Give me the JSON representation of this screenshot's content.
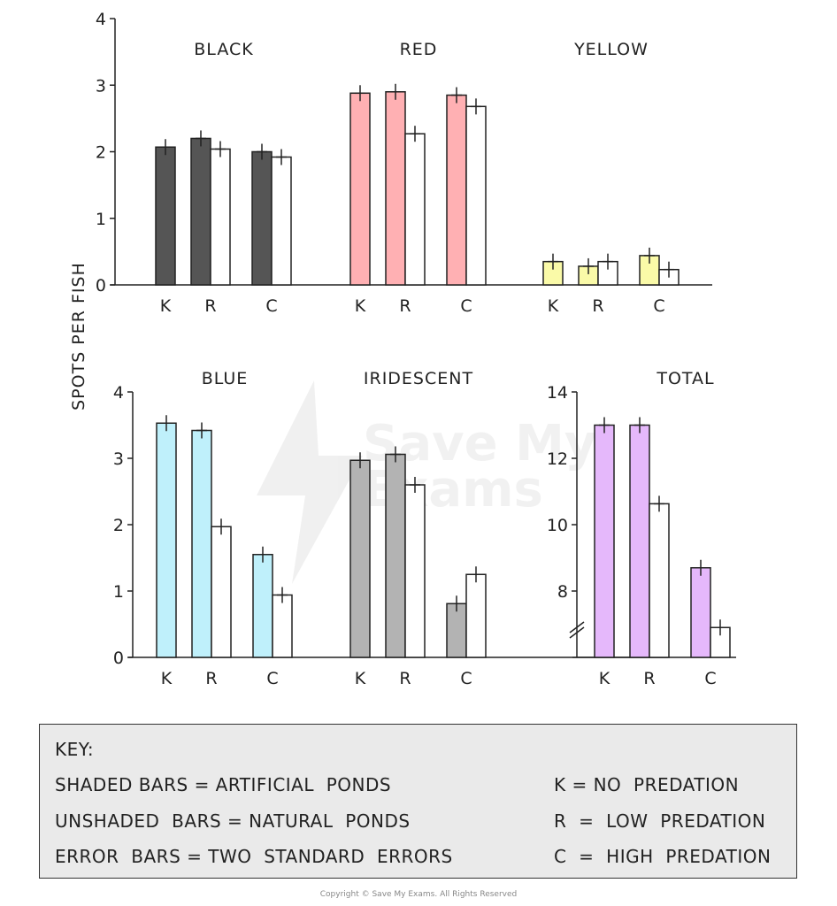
{
  "chart_data": [
    {
      "type": "bar",
      "title": "BLACK",
      "ylabel": "SPOTS PER FISH",
      "ylim": [
        0,
        4
      ],
      "yticks": [
        0,
        1,
        2,
        3,
        4
      ],
      "categories": [
        "K",
        "R",
        "C"
      ],
      "series": [
        {
          "name": "SHADED BARS = ARTIFICIAL PONDS",
          "values": [
            2.07,
            2.2,
            2.0
          ]
        },
        {
          "name": "UNSHADED BARS = NATURAL PONDS",
          "values": [
            null,
            2.04,
            1.92
          ]
        }
      ],
      "color": "#555555"
    },
    {
      "type": "bar",
      "title": "RED",
      "ylim": [
        0,
        4
      ],
      "categories": [
        "K",
        "R",
        "C"
      ],
      "series": [
        {
          "name": "SHADED BARS = ARTIFICIAL PONDS",
          "values": [
            2.88,
            2.9,
            2.85
          ]
        },
        {
          "name": "UNSHADED BARS = NATURAL PONDS",
          "values": [
            null,
            2.27,
            2.68
          ]
        }
      ],
      "color": "#ffb0b3"
    },
    {
      "type": "bar",
      "title": "YELLOW",
      "ylim": [
        0,
        4
      ],
      "categories": [
        "K",
        "R",
        "C"
      ],
      "series": [
        {
          "name": "SHADED BARS = ARTIFICIAL PONDS",
          "values": [
            0.35,
            0.28,
            0.44
          ]
        },
        {
          "name": "UNSHADED BARS = NATURAL PONDS",
          "values": [
            null,
            0.35,
            0.23
          ]
        }
      ],
      "color": "#fafaa8"
    },
    {
      "type": "bar",
      "title": "BLUE",
      "ylim": [
        0,
        4
      ],
      "yticks": [
        0,
        1,
        2,
        3,
        4
      ],
      "categories": [
        "K",
        "R",
        "C"
      ],
      "series": [
        {
          "name": "SHADED BARS = ARTIFICIAL PONDS",
          "values": [
            3.53,
            3.42,
            1.55
          ]
        },
        {
          "name": "UNSHADED BARS = NATURAL PONDS",
          "values": [
            null,
            1.97,
            0.94
          ]
        }
      ],
      "color": "#bff0fb"
    },
    {
      "type": "bar",
      "title": "IRIDESCENT",
      "ylim": [
        0,
        4
      ],
      "categories": [
        "K",
        "R",
        "C"
      ],
      "series": [
        {
          "name": "SHADED BARS = ARTIFICIAL PONDS",
          "values": [
            2.97,
            3.06,
            0.81
          ]
        },
        {
          "name": "UNSHADED BARS = NATURAL PONDS",
          "values": [
            null,
            2.6,
            1.25
          ]
        }
      ],
      "color": "#b3b3b3"
    },
    {
      "type": "bar",
      "title": "TOTAL",
      "ylim": [
        6,
        14
      ],
      "yticks": [
        8,
        10,
        12,
        14
      ],
      "axis_break": true,
      "categories": [
        "K",
        "R",
        "C"
      ],
      "series": [
        {
          "name": "SHADED BARS = ARTIFICIAL PONDS",
          "values": [
            13.0,
            13.0,
            8.7
          ]
        },
        {
          "name": "UNSHADED BARS = NATURAL PONDS",
          "values": [
            null,
            10.63,
            6.9
          ]
        }
      ],
      "color": "#e5b8fb"
    }
  ],
  "key": {
    "title": "KEY:",
    "shaded": "SHADED BARS = ARTIFICIAL  PONDS",
    "unshaded": "UNSHADED  BARS = NATURAL  PONDS",
    "error": "ERROR  BARS = TWO  STANDARD  ERRORS",
    "k": "K = NO  PREDATION",
    "r": "R  =  LOW  PREDATION",
    "c": "C  =  HIGH  PREDATION"
  },
  "watermark": "Save My Exams",
  "copyright": "Copyright © Save My Exams. All Rights Reserved"
}
